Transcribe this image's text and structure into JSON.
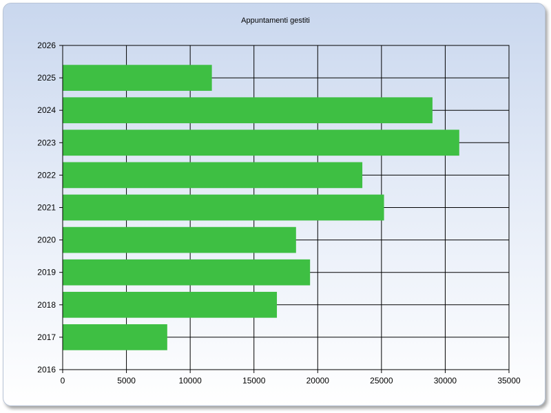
{
  "chart_data": {
    "type": "bar",
    "orientation": "horizontal",
    "title": "Appuntamenti gestiti",
    "xlabel": "",
    "ylabel": "",
    "xlim": [
      0,
      35000
    ],
    "x_ticks": [
      0,
      5000,
      10000,
      15000,
      20000,
      25000,
      30000,
      35000
    ],
    "ylim": [
      2016,
      2026
    ],
    "y_ticks": [
      2016,
      2017,
      2018,
      2019,
      2020,
      2021,
      2022,
      2023,
      2024,
      2025,
      2026
    ],
    "categories": [
      2017,
      2018,
      2019,
      2020,
      2021,
      2022,
      2023,
      2024,
      2025
    ],
    "values": [
      8200,
      16800,
      19400,
      18300,
      25200,
      23500,
      31100,
      29000,
      11700
    ],
    "bar_color": "#3ebf43",
    "grid": true,
    "legend": "none"
  }
}
